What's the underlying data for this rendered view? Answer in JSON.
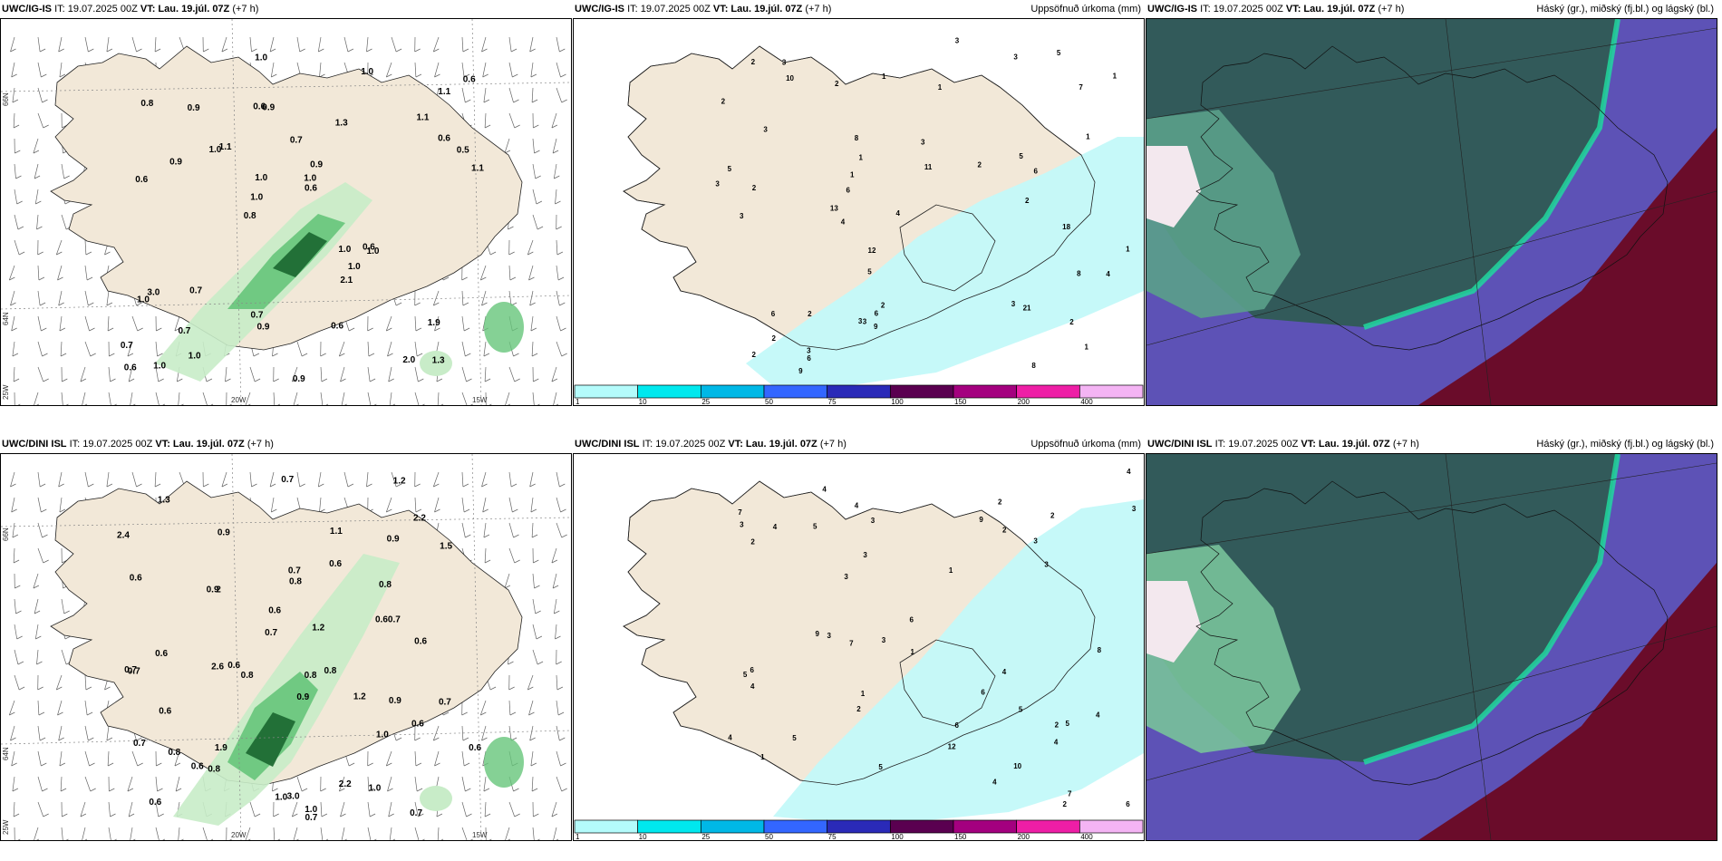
{
  "panels": [
    {
      "id": "p1",
      "source": "UWC/IG-IS",
      "run": "IT: 19.07.2025 00Z",
      "vt": "VT: Lau. 19.júl. 07Z",
      "lead": "(+7 h)",
      "title_right": "",
      "type": "precip_wind",
      "labels": [
        "1.3",
        "0.6",
        "1.1",
        "0.8",
        "1.3",
        "1.0",
        "0.6",
        "0.7",
        "3.0",
        "1.1",
        "0.7",
        "0.7",
        "0.9",
        "0.9",
        "1.0",
        "0.8",
        "1.0",
        "1.1",
        "1.0",
        "0.6",
        "1.0",
        "0.7",
        "1.0",
        "0.9",
        "1.0",
        "0.7",
        "2.0",
        "1.9",
        "0.6",
        "0.9",
        "1.0",
        "0.9",
        "2.1",
        "1.0",
        "0.5",
        "1.0",
        "0.6",
        "0.9",
        "0.6",
        "1.0",
        "1.1",
        "0.6",
        "1.0",
        "0.6"
      ]
    },
    {
      "id": "p2",
      "source": "UWC/IG-IS",
      "run": "IT: 19.07.2025 00Z",
      "vt": "VT: Lau. 19.júl. 07Z",
      "lead": "(+7 h)",
      "title_right": "Uppsöfnuð úrkoma (mm)",
      "type": "accum",
      "labels": [
        "3",
        "1",
        "2",
        "6",
        "5",
        "21",
        "18",
        "10",
        "5",
        "12",
        "8",
        "3",
        "1",
        "1",
        "3",
        "2",
        "1",
        "1",
        "1",
        "2",
        "4",
        "2",
        "8",
        "9",
        "13",
        "11",
        "6",
        "4",
        "3",
        "3",
        "2",
        "6",
        "6",
        "9",
        "5",
        "3",
        "2",
        "1",
        "3",
        "2",
        "3",
        "3",
        "1",
        "3",
        "6",
        "3",
        "2",
        "2",
        "5",
        "4",
        "2",
        "8",
        "7",
        "2"
      ]
    },
    {
      "id": "p3",
      "source": "UWC/IG-IS",
      "run": "IT: 19.07.2025 00Z",
      "vt": "VT: Lau. 19.júl. 07Z",
      "lead": "(+7 h)",
      "title_right": "Háský (gr.), miðský (fj.bl.) og lágský (bl.)",
      "type": "cloud",
      "labels": []
    },
    {
      "id": "p4",
      "source": "UWC/DINI ISL",
      "run": "IT: 19.07.2025 00Z",
      "vt": "VT: Lau. 19.júl. 07Z",
      "lead": "(+7 h)",
      "title_right": "",
      "type": "precip_wind",
      "labels": [
        "1.2",
        "1.0",
        "1.2",
        "2",
        "0.9",
        "0.7",
        "0.7",
        "1.0",
        "0.9",
        "1.0",
        "0.9",
        "0.8",
        "0.6",
        "0.6",
        "0.7",
        "0.8",
        "0.7",
        "0.8",
        "0.7",
        "0.8",
        "0.6",
        "0.6",
        "0.8",
        "0.7",
        "0.60.7",
        "1.0",
        "0.6",
        "2.2",
        "2.2",
        "1.2",
        "3.0",
        "1.3",
        "2.6",
        "2.4",
        "1.9",
        "0.6",
        "0.9",
        "0.6",
        "0.6",
        "0.6",
        "1.5",
        "0.7",
        "0.6",
        "0.7",
        "0.7",
        "1.1",
        "0.8",
        "0.9",
        "0.8",
        "0.6"
      ]
    },
    {
      "id": "p5",
      "source": "UWC/DINI ISL",
      "run": "IT: 19.07.2025 00Z",
      "vt": "VT: Lau. 19.júl. 07Z",
      "lead": "(+7 h)",
      "title_right": "Uppsöfnuð úrkoma (mm)",
      "type": "accum",
      "labels": [
        "3",
        "2",
        "3",
        "2",
        "12",
        "1",
        "2",
        "5",
        "4",
        "4",
        "3",
        "6",
        "3",
        "3",
        "5",
        "4",
        "3",
        "4",
        "2",
        "3",
        "6",
        "7",
        "5",
        "7",
        "3",
        "9",
        "8",
        "9",
        "7",
        "6",
        "5",
        "10",
        "1",
        "6",
        "4",
        "5",
        "5",
        "4",
        "4",
        "6",
        "4",
        "3",
        "4",
        "2",
        "2",
        "1",
        "4",
        "1",
        "2"
      ]
    },
    {
      "id": "p6",
      "source": "UWC/DINI ISL",
      "run": "IT: 19.07.2025 00Z",
      "vt": "VT: Lau. 19.júl. 07Z",
      "lead": "(+7 h)",
      "title_right": "Háský (gr.), miðský (fj.bl.) og lágský (bl.)",
      "type": "cloud",
      "labels": []
    }
  ],
  "axes": {
    "lat_top": "66N",
    "lat_mid": "64N",
    "lon_left": "25W",
    "lon_mid": "20W",
    "lon_right": "15W"
  },
  "colorbar": {
    "ticks": [
      "1",
      "10",
      "25",
      "50",
      "75",
      "100",
      "150",
      "200",
      "400"
    ],
    "colors": [
      "#b4fbfb",
      "#00e8ee",
      "#00b8e6",
      "#3366ff",
      "#2a2ab8",
      "#5a0050",
      "#a4007f",
      "#ee1ea6",
      "#f4b4f4"
    ]
  },
  "colors": {
    "land": "#f2e8d8",
    "sea_precip": "#c3f9f9",
    "green_light": "#c8ecc8",
    "green_mid": "#66c57a",
    "green_dark": "#1e6b33"
  }
}
